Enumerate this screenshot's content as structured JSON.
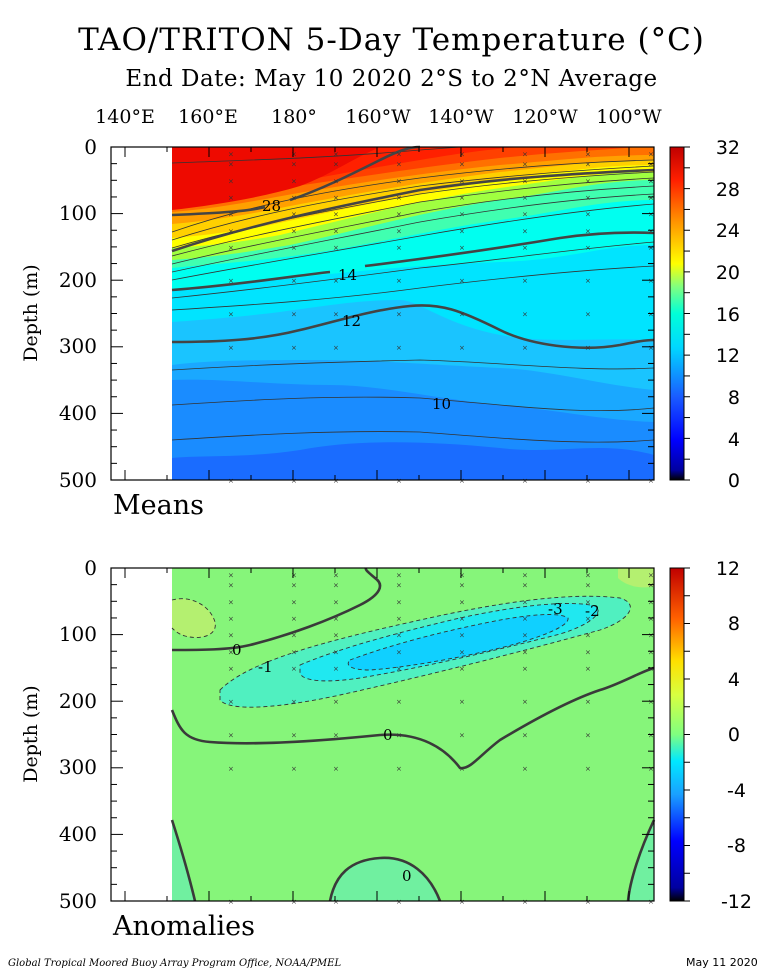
{
  "title": "TAO/TRITON 5-Day Temperature (°C)",
  "subtitle": "End Date: May 10 2020  2°S to 2°N Average",
  "longitudes": [
    "140°E",
    "160°E",
    "180°",
    "160°W",
    "140°W",
    "120°W",
    "100°W"
  ],
  "footer_left": "Global Tropical Moored Buoy Array Program Office, NOAA/PMEL",
  "footer_right": "May 11 2020",
  "colors": {
    "deep_blue": "#1a5cff",
    "cyan": "#00e6ff",
    "green": "#86f57a",
    "yellow": "#ffe000",
    "red": "#e00000"
  },
  "chart_data": [
    {
      "type": "heatmap",
      "panel_label": "Means",
      "ylabel": "Depth (m)",
      "ylim": [
        500,
        0
      ],
      "yticks": [
        0,
        100,
        200,
        300,
        400,
        500
      ],
      "xticks": [
        "140°E",
        "160°E",
        "180°",
        "160°W",
        "140°W",
        "120°W",
        "100°W"
      ],
      "colorbar_ticks": [
        32,
        28,
        24,
        20,
        16,
        12,
        8,
        4,
        0
      ],
      "colorbar_range": [
        0,
        32
      ],
      "contour_labels": [
        "28",
        "14",
        "12",
        "10"
      ],
      "isotherms": [
        {
          "value": 28,
          "depth_at_x": [
            [
              160,
              100
            ],
            [
              175,
              98
            ],
            [
              185,
              80
            ],
            [
              195,
              60
            ],
            [
              205,
              40
            ],
            [
              215,
              20
            ],
            [
              222,
              0
            ]
          ]
        },
        {
          "value": 20,
          "depth_at_x": [
            [
              160,
              172
            ],
            [
              180,
              160
            ],
            [
              200,
              120
            ],
            [
              220,
              90
            ],
            [
              240,
              62
            ],
            [
              265,
              45
            ]
          ]
        },
        {
          "value": 14,
          "depth_at_x": [
            [
              160,
              215
            ],
            [
              180,
              200
            ],
            [
              200,
              165
            ],
            [
              220,
              135
            ],
            [
              240,
              100
            ],
            [
              265,
              70
            ]
          ]
        },
        {
          "value": 12,
          "depth_at_x": [
            [
              160,
              295
            ],
            [
              180,
              280
            ],
            [
              200,
              255
            ],
            [
              210,
              250
            ],
            [
              230,
              285
            ],
            [
              250,
              305
            ],
            [
              265,
              290
            ]
          ]
        },
        {
          "value": 10,
          "depth_at_x": [
            [
              160,
              375
            ],
            [
              200,
              380
            ],
            [
              220,
              385
            ],
            [
              240,
              410
            ],
            [
              265,
              400
            ]
          ]
        }
      ]
    },
    {
      "type": "heatmap",
      "panel_label": "Anomalies",
      "ylabel": "Depth (m)",
      "ylim": [
        500,
        0
      ],
      "yticks": [
        0,
        100,
        200,
        300,
        400,
        500
      ],
      "xticks": [
        "140°E",
        "160°E",
        "180°",
        "160°W",
        "140°W",
        "120°W",
        "100°W"
      ],
      "colorbar_ticks": [
        12,
        8,
        4,
        0,
        -4,
        -8,
        -12
      ],
      "colorbar_range": [
        -12,
        12
      ],
      "contour_labels": [
        "0",
        "-1",
        "-3",
        "-2",
        "0",
        "0"
      ]
    }
  ]
}
